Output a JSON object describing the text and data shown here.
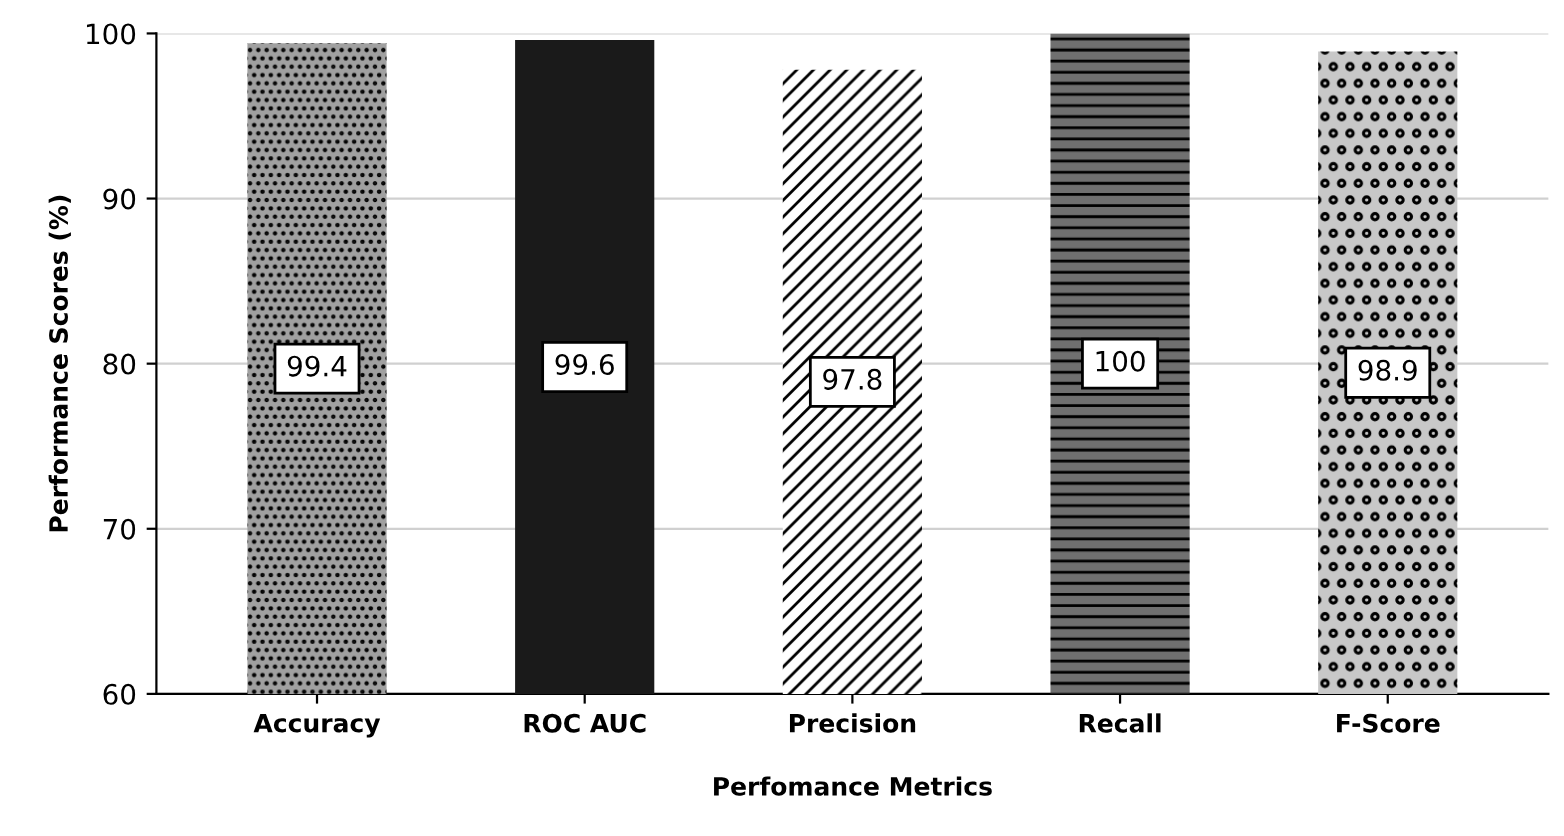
{
  "chart_data": {
    "type": "bar",
    "xlabel": "Perfomance Metrics",
    "ylabel": "Performance Scores (%)",
    "categories": [
      "Accuracy",
      "ROC AUC",
      "Precision",
      "Recall",
      "F-Score"
    ],
    "values": [
      99.4,
      99.6,
      97.8,
      100,
      98.9
    ],
    "colors": [
      "#a0a0a0",
      "#1a1a1a",
      "#ffffff",
      "#707070",
      "#c8c8c8"
    ],
    "ylim": [
      60,
      100
    ],
    "yticks": [
      60,
      70,
      80,
      90,
      100
    ],
    "grid": "y",
    "data_labels": true
  }
}
